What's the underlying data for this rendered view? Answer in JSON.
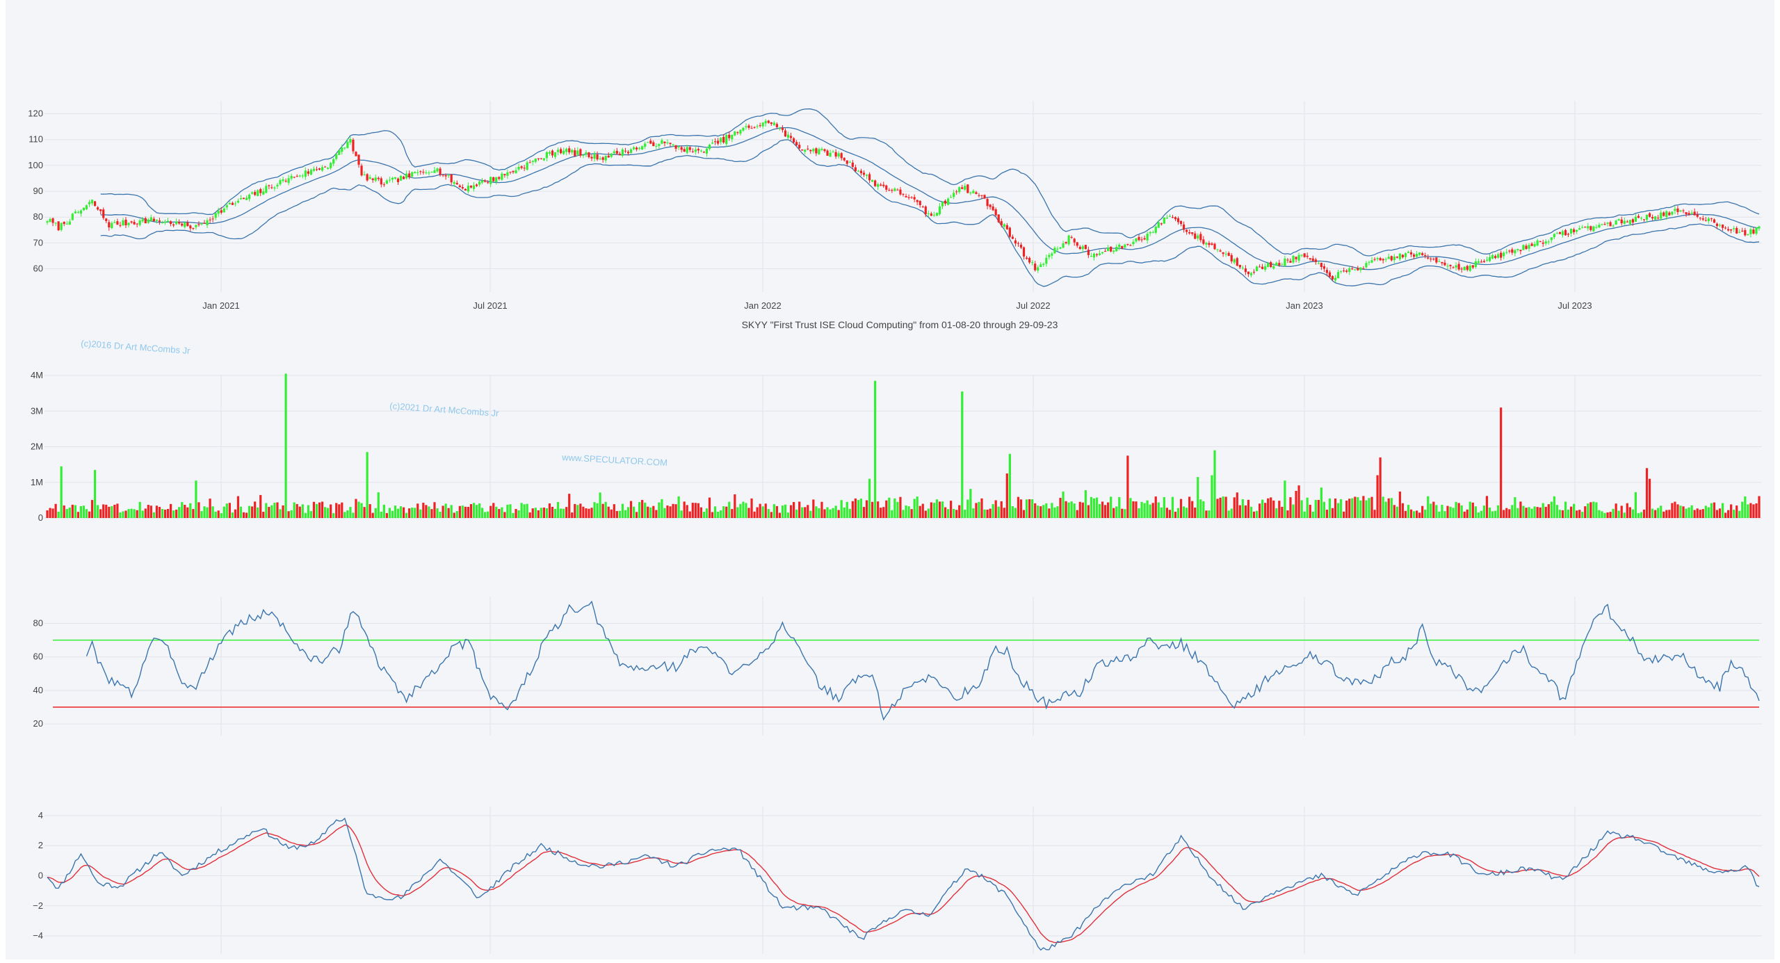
{
  "title": "SKYY \"First Trust ISE Cloud Computing\" from 01-08-20 through 29-09-23",
  "watermarks": [
    "(c)2016 Dr Art McCombs Jr",
    "(c)2021 Dr Art McCombs Jr",
    "www.SPECULATOR.COM"
  ],
  "colors": {
    "up": "#33ee33",
    "down": "#ee2222",
    "line": "#3a74ad",
    "signal": "#e0303a",
    "grid": "#e2e4ea",
    "bg": "#f4f5f9"
  },
  "chart_data": [
    {
      "type": "candlestick",
      "name": "price",
      "x_ticks": [
        "Jan 2021",
        "Jul 2021",
        "Jan 2022",
        "Jul 2022",
        "Jan 2023",
        "Jul 2023"
      ],
      "y_ticks": [
        "60",
        "70",
        "80",
        "90",
        "100",
        "110",
        "120"
      ],
      "ylim": [
        51,
        125
      ],
      "indicators": [
        "bollinger-upper",
        "bollinger-middle",
        "bollinger-lower"
      ],
      "close_keypoints": [
        [
          0,
          79
        ],
        [
          4,
          76
        ],
        [
          16,
          86
        ],
        [
          22,
          77
        ],
        [
          38,
          79
        ],
        [
          53,
          76
        ],
        [
          64,
          84
        ],
        [
          86,
          95
        ],
        [
          100,
          100
        ],
        [
          108,
          110
        ],
        [
          112,
          96
        ],
        [
          120,
          93
        ],
        [
          138,
          99
        ],
        [
          148,
          91
        ],
        [
          162,
          96
        ],
        [
          182,
          106
        ],
        [
          197,
          103
        ],
        [
          218,
          109
        ],
        [
          232,
          105
        ],
        [
          248,
          114
        ],
        [
          258,
          117
        ],
        [
          268,
          107
        ],
        [
          282,
          104
        ],
        [
          295,
          93
        ],
        [
          307,
          88
        ],
        [
          315,
          80
        ],
        [
          325,
          92
        ],
        [
          333,
          88
        ],
        [
          352,
          60
        ],
        [
          364,
          72
        ],
        [
          372,
          65
        ],
        [
          384,
          69
        ],
        [
          392,
          73
        ],
        [
          400,
          81
        ],
        [
          408,
          73
        ],
        [
          418,
          67
        ],
        [
          428,
          59
        ],
        [
          448,
          65
        ],
        [
          458,
          57
        ],
        [
          474,
          63
        ],
        [
          486,
          66
        ],
        [
          496,
          63
        ],
        [
          504,
          60
        ],
        [
          520,
          66
        ],
        [
          544,
          75
        ],
        [
          560,
          78
        ],
        [
          580,
          82
        ],
        [
          590,
          80
        ],
        [
          605,
          73
        ],
        [
          610,
          76
        ]
      ]
    },
    {
      "type": "bar",
      "name": "volume",
      "y_ticks": [
        "0",
        "1M",
        "2M",
        "3M",
        "4M"
      ],
      "ylim": [
        0,
        4000000
      ],
      "typical_volume": 300000,
      "spikes": [
        [
          5,
          1450000
        ],
        [
          17,
          1350000
        ],
        [
          53,
          1050000
        ],
        [
          85,
          4050000
        ],
        [
          114,
          1850000
        ],
        [
          186,
          680000
        ],
        [
          293,
          1100000
        ],
        [
          295,
          3850000
        ],
        [
          326,
          3550000
        ],
        [
          342,
          1250000
        ],
        [
          343,
          1800000
        ],
        [
          370,
          780000
        ],
        [
          385,
          1750000
        ],
        [
          410,
          1150000
        ],
        [
          415,
          1200000
        ],
        [
          416,
          1900000
        ],
        [
          441,
          1050000
        ],
        [
          474,
          1200000
        ],
        [
          475,
          1700000
        ],
        [
          518,
          3100000
        ],
        [
          570,
          1400000
        ],
        [
          571,
          1100000
        ]
      ]
    },
    {
      "type": "line",
      "name": "rsi",
      "y_ticks": [
        "20",
        "40",
        "60",
        "80"
      ],
      "ylim": [
        13,
        96
      ],
      "levels": [
        70,
        30
      ],
      "keypoints": [
        [
          14,
          62
        ],
        [
          16,
          67
        ],
        [
          18,
          57
        ],
        [
          22,
          47
        ],
        [
          26,
          43
        ],
        [
          30,
          38
        ],
        [
          32,
          45
        ],
        [
          36,
          65
        ],
        [
          38,
          72
        ],
        [
          44,
          62
        ],
        [
          48,
          46
        ],
        [
          52,
          41
        ],
        [
          58,
          57
        ],
        [
          62,
          70
        ],
        [
          68,
          79
        ],
        [
          74,
          84
        ],
        [
          80,
          87
        ],
        [
          86,
          74
        ],
        [
          92,
          60
        ],
        [
          98,
          58
        ],
        [
          104,
          65
        ],
        [
          108,
          86
        ],
        [
          112,
          80
        ],
        [
          118,
          55
        ],
        [
          124,
          44
        ],
        [
          128,
          34
        ],
        [
          132,
          43
        ],
        [
          138,
          51
        ],
        [
          142,
          62
        ],
        [
          150,
          69
        ],
        [
          154,
          52
        ],
        [
          158,
          37
        ],
        [
          162,
          33
        ],
        [
          164,
          28
        ],
        [
          168,
          38
        ],
        [
          174,
          58
        ],
        [
          178,
          72
        ],
        [
          182,
          79
        ],
        [
          186,
          88
        ],
        [
          190,
          87
        ],
        [
          194,
          90
        ],
        [
          198,
          75
        ],
        [
          204,
          56
        ],
        [
          212,
          52
        ],
        [
          218,
          55
        ],
        [
          224,
          54
        ],
        [
          230,
          64
        ],
        [
          236,
          65
        ],
        [
          240,
          59
        ],
        [
          244,
          48
        ],
        [
          252,
          60
        ],
        [
          258,
          68
        ],
        [
          262,
          81
        ],
        [
          266,
          70
        ],
        [
          272,
          51
        ],
        [
          276,
          42
        ],
        [
          282,
          35
        ],
        [
          286,
          44
        ],
        [
          294,
          51
        ],
        [
          298,
          23
        ],
        [
          304,
          37
        ],
        [
          312,
          48
        ],
        [
          318,
          45
        ],
        [
          324,
          35
        ],
        [
          332,
          45
        ],
        [
          338,
          64
        ],
        [
          342,
          63
        ],
        [
          346,
          48
        ],
        [
          352,
          37
        ],
        [
          356,
          32
        ],
        [
          362,
          37
        ],
        [
          368,
          39
        ],
        [
          374,
          54
        ],
        [
          380,
          59
        ],
        [
          386,
          58
        ],
        [
          392,
          70
        ],
        [
          396,
          66
        ],
        [
          404,
          68
        ],
        [
          408,
          62
        ],
        [
          414,
          51
        ],
        [
          420,
          37
        ],
        [
          424,
          31
        ],
        [
          430,
          39
        ],
        [
          436,
          49
        ],
        [
          444,
          54
        ],
        [
          450,
          61
        ],
        [
          454,
          58
        ],
        [
          460,
          50
        ],
        [
          468,
          44
        ],
        [
          474,
          47
        ],
        [
          478,
          58
        ],
        [
          484,
          60
        ],
        [
          488,
          70
        ],
        [
          490,
          80
        ],
        [
          494,
          58
        ],
        [
          500,
          52
        ],
        [
          504,
          45
        ],
        [
          508,
          38
        ],
        [
          512,
          41
        ],
        [
          518,
          54
        ],
        [
          522,
          62
        ],
        [
          526,
          65
        ],
        [
          530,
          54
        ],
        [
          536,
          47
        ],
        [
          540,
          33
        ],
        [
          544,
          50
        ],
        [
          548,
          73
        ],
        [
          552,
          86
        ],
        [
          556,
          89
        ],
        [
          560,
          76
        ],
        [
          564,
          72
        ],
        [
          568,
          60
        ],
        [
          572,
          58
        ],
        [
          578,
          60
        ],
        [
          584,
          59
        ],
        [
          590,
          46
        ],
        [
          596,
          42
        ],
        [
          600,
          58
        ],
        [
          604,
          51
        ],
        [
          608,
          40
        ],
        [
          610,
          35
        ]
      ]
    },
    {
      "type": "line",
      "name": "macd",
      "y_ticks": [
        "−4",
        "−2",
        "0",
        "2",
        "4"
      ],
      "ylim": [
        -5.2,
        4.6
      ],
      "series": [
        "macd",
        "signal"
      ],
      "keypoints": [
        [
          0,
          0
        ],
        [
          4,
          -0.9
        ],
        [
          12,
          1.5
        ],
        [
          18,
          -0.5
        ],
        [
          26,
          -0.7
        ],
        [
          40,
          1.6
        ],
        [
          48,
          0
        ],
        [
          60,
          1.5
        ],
        [
          76,
          3.2
        ],
        [
          86,
          1.8
        ],
        [
          96,
          2.2
        ],
        [
          102,
          3.6
        ],
        [
          106,
          3.8
        ],
        [
          114,
          -1.3
        ],
        [
          126,
          -1.5
        ],
        [
          140,
          1.1
        ],
        [
          154,
          -1.5
        ],
        [
          166,
          0.6
        ],
        [
          176,
          2.0
        ],
        [
          190,
          0.8
        ],
        [
          198,
          0.6
        ],
        [
          214,
          1.3
        ],
        [
          224,
          0.6
        ],
        [
          236,
          1.7
        ],
        [
          246,
          1.8
        ],
        [
          262,
          -2.1
        ],
        [
          276,
          -2.2
        ],
        [
          290,
          -4.2
        ],
        [
          304,
          -2.3
        ],
        [
          314,
          -2.6
        ],
        [
          328,
          0.6
        ],
        [
          342,
          -1.3
        ],
        [
          354,
          -5.0
        ],
        [
          364,
          -4.2
        ],
        [
          376,
          -1.7
        ],
        [
          386,
          -0.4
        ],
        [
          394,
          0.1
        ],
        [
          404,
          2.5
        ],
        [
          414,
          0.1
        ],
        [
          426,
          -2.2
        ],
        [
          440,
          -0.8
        ],
        [
          454,
          0
        ],
        [
          466,
          -1.3
        ],
        [
          482,
          0.7
        ],
        [
          490,
          1.6
        ],
        [
          500,
          1.4
        ],
        [
          512,
          0
        ],
        [
          528,
          0.5
        ],
        [
          540,
          -0.3
        ],
        [
          556,
          2.8
        ],
        [
          566,
          2.5
        ],
        [
          578,
          1.4
        ],
        [
          592,
          0.3
        ],
        [
          600,
          0.3
        ],
        [
          606,
          0.6
        ],
        [
          610,
          -0.9
        ]
      ]
    }
  ]
}
